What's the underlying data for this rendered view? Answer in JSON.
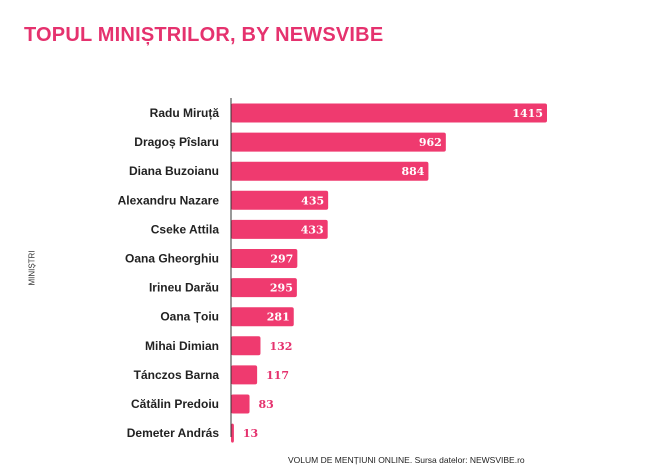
{
  "chart_data": {
    "type": "bar",
    "orientation": "horizontal",
    "title": "TOPUL MINIȘTRILOR, BY NEWSVIBE",
    "ylabel": "MINIȘTRI",
    "xlabel": "VOLUM DE MENȚIUNI ONLINE. Sursa datelor: NEWSVIBE.ro",
    "categories": [
      "Radu Miruță",
      "Dragoș Pîslaru",
      "Diana Buzoianu",
      "Alexandru Nazare",
      "Cseke Attila",
      "Oana Gheorghiu",
      "Irineu Darău",
      "Oana Țoiu",
      "Mihai Dimian",
      "Tánczos Barna",
      "Cătălin Predoiu",
      "Demeter András"
    ],
    "values": [
      1415,
      962,
      884,
      435,
      433,
      297,
      295,
      281,
      132,
      117,
      83,
      13
    ],
    "xlim": [
      0,
      1415
    ],
    "grid": false,
    "legend": "none",
    "colors": {
      "bar": "#ef3a6f",
      "title": "#e5326e",
      "label_inside": "#ffffff",
      "label_outside": "#e5326e",
      "axis": "#333333"
    }
  }
}
